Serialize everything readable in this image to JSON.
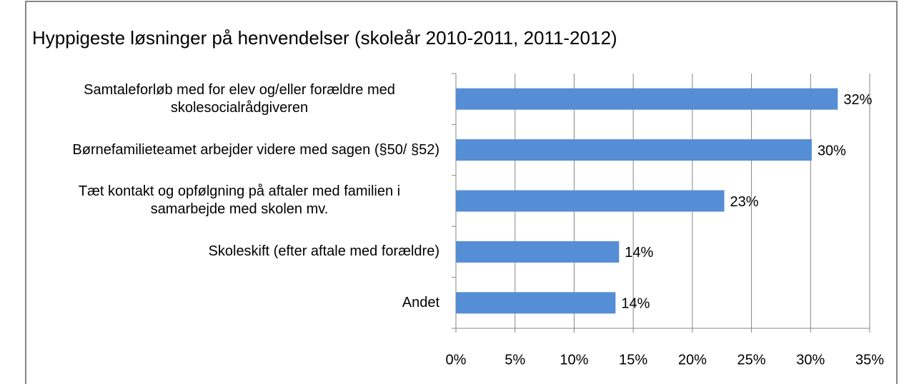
{
  "chart_data": {
    "type": "bar",
    "orientation": "horizontal",
    "title": "Hyppigeste løsninger på henvendelser (skoleår 2010-2011, 2011-2012)",
    "categories": [
      "Samtaleforløb med for elev og/eller forældre med skolesocialrådgiveren",
      "Børnefamilieteamet arbejder videre med sagen (§50/ §52)",
      "Tæt kontakt og opfølgning på aftaler med familien i samarbejde med skolen mv.",
      "Skoleskift (efter aftale med forældre)",
      "Andet"
    ],
    "values": [
      32.3,
      30.1,
      22.7,
      13.8,
      13.5
    ],
    "value_labels": [
      "32%",
      "30%",
      "23%",
      "14%",
      "14%"
    ],
    "color": "#558ed5",
    "xlim": [
      0,
      35
    ],
    "xticks": [
      {
        "value": 0,
        "label": "0%"
      },
      {
        "value": 5,
        "label": "5%"
      },
      {
        "value": 10,
        "label": "10%"
      },
      {
        "value": 15,
        "label": "15%"
      },
      {
        "value": 20,
        "label": "20%"
      },
      {
        "value": 25,
        "label": "25%"
      },
      {
        "value": 30,
        "label": "30%"
      },
      {
        "value": 35,
        "label": "35%"
      }
    ],
    "grid": true
  }
}
